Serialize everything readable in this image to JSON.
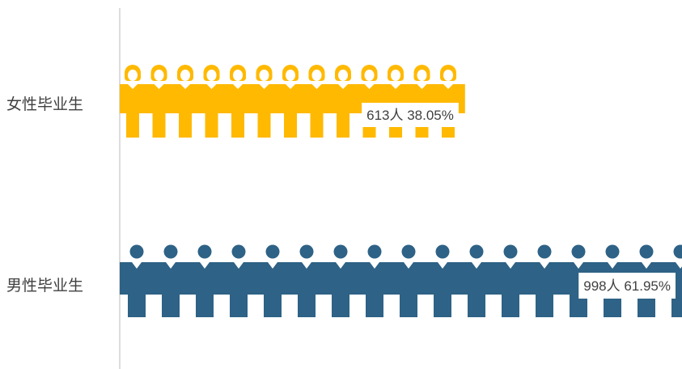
{
  "chart_data": {
    "type": "bar",
    "categories": [
      "女性毕业生",
      "男性毕业生"
    ],
    "values": [
      613,
      998
    ],
    "percentages": [
      "38.05%",
      "61.95%"
    ],
    "data_labels": [
      "613人  38.05%",
      "998人  61.95%"
    ],
    "colors": [
      "#FFB900",
      "#2E6286"
    ],
    "icons": [
      "female-person-icon",
      "male-person-icon"
    ],
    "xlim": [
      0,
      998
    ],
    "title": "",
    "xlabel": "",
    "ylabel": "",
    "grid": false,
    "legend": "none"
  }
}
